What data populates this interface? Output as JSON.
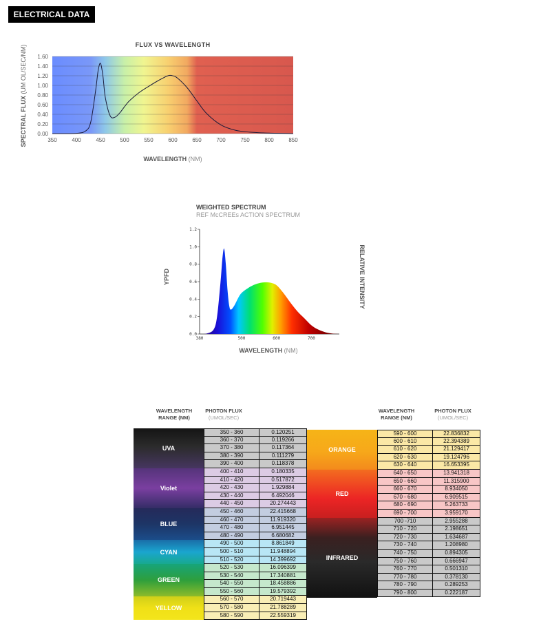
{
  "header": {
    "title": "ELECTRICAL DATA"
  },
  "chart1": {
    "title": "FLUX VS WAVELENGTH",
    "ylabel_bold": "SPECTRAL FLUX",
    "ylabel_light": "(UM OL/SEC/NM)",
    "xlabel_bold": "WAVELENGTH",
    "xlabel_light": "(NM)"
  },
  "chart2": {
    "title": "WEIGHTED SPECTRUM",
    "subtitle": "REF McCREEs ACTION SPECTRUM",
    "ylabel": "YPFD",
    "right_label": "RELATIVE INTENSITY",
    "xlabel_bold": "WAVELENGTH",
    "xlabel_light": "(NM)"
  },
  "table_headers": {
    "range": "WAVELENGTH",
    "range_unit": "RANGE (NM)",
    "flux": "PHOTON FLUX",
    "flux_unit": "(UMOL/SEC)"
  },
  "chart_data": [
    {
      "type": "line",
      "title": "FLUX VS WAVELENGTH",
      "xlabel": "WAVELENGTH (NM)",
      "ylabel": "SPECTRAL FLUX (UM OL/SEC/NM)",
      "xlim": [
        350,
        850
      ],
      "ylim": [
        0,
        1.6
      ],
      "xticks": [
        "350",
        "400",
        "450",
        "500",
        "550",
        "600",
        "650",
        "700",
        "750",
        "800",
        "850"
      ],
      "yticks": [
        "0.00",
        "0.20",
        "0.40",
        "0.60",
        "0.80",
        "1.00",
        "1.20",
        "1.40",
        "1.60"
      ],
      "grid": true,
      "x": [
        350,
        400,
        420,
        430,
        440,
        445,
        450,
        455,
        460,
        470,
        480,
        490,
        500,
        510,
        530,
        550,
        570,
        590,
        600,
        610,
        630,
        650,
        670,
        700,
        730,
        760,
        800,
        850
      ],
      "y": [
        0,
        0.005,
        0.06,
        0.25,
        0.9,
        1.3,
        1.46,
        1.2,
        0.75,
        0.37,
        0.34,
        0.43,
        0.56,
        0.68,
        0.85,
        0.98,
        1.1,
        1.2,
        1.2,
        1.15,
        0.95,
        0.68,
        0.42,
        0.18,
        0.07,
        0.03,
        0.01,
        0
      ]
    },
    {
      "type": "area",
      "title": "WEIGHTED SPECTRUM",
      "subtitle": "REF McCREEs ACTION SPECTRUM",
      "xlabel": "WAVELENGTH (NM)",
      "ylabel": "YPFD",
      "xlim": [
        380,
        780
      ],
      "ylim": [
        0,
        1.2
      ],
      "xticks": [
        "380",
        "500",
        "600",
        "700"
      ],
      "yticks": [
        "0.0",
        "0.2",
        "0.4",
        "0.6",
        "0.8",
        "1.0",
        "1.2"
      ],
      "x": [
        380,
        400,
        420,
        430,
        440,
        445,
        450,
        455,
        460,
        465,
        470,
        480,
        490,
        500,
        520,
        540,
        560,
        580,
        600,
        620,
        640,
        660,
        680,
        700,
        720,
        740,
        760,
        780
      ],
      "y": [
        0,
        0.005,
        0.05,
        0.2,
        0.6,
        0.85,
        0.98,
        0.8,
        0.5,
        0.32,
        0.28,
        0.33,
        0.41,
        0.47,
        0.53,
        0.57,
        0.59,
        0.59,
        0.56,
        0.47,
        0.36,
        0.26,
        0.18,
        0.1,
        0.05,
        0.02,
        0.005,
        0
      ]
    },
    {
      "type": "table",
      "columns": [
        "WAVELENGTH RANGE (NM)",
        "PHOTON FLUX (UMOL/SEC)"
      ],
      "left": {
        "rows": [
          [
            "350 - 360",
            "0.120251"
          ],
          [
            "360 - 370",
            "0.119266"
          ],
          [
            "370 - 380",
            "0.117364"
          ],
          [
            "380 - 390",
            "0.111279"
          ],
          [
            "390 - 400",
            "0.118378"
          ],
          [
            "400 - 410",
            "0.180335"
          ],
          [
            "410 - 420",
            "0.517872"
          ],
          [
            "420 - 430",
            "1.929884"
          ],
          [
            "430 - 440",
            "6.492046"
          ],
          [
            "440 - 450",
            "20.274443"
          ],
          [
            "450 - 460",
            "22.415668"
          ],
          [
            "460 - 470",
            "11.919320"
          ],
          [
            "470 - 480",
            "6.951445"
          ],
          [
            "480 - 490",
            "6.680682"
          ],
          [
            "490 - 500",
            "8.861849"
          ],
          [
            "500 - 510",
            "11.948894"
          ],
          [
            "510 - 520",
            "14.399692"
          ],
          [
            "520 - 530",
            "16.096399"
          ],
          [
            "530 - 540",
            "17.340881"
          ],
          [
            "540 - 550",
            "18.458886"
          ],
          [
            "550 - 560",
            "19.579392"
          ],
          [
            "560 - 570",
            "20.719443"
          ],
          [
            "570 - 580",
            "21.788289"
          ],
          [
            "580 - 590",
            "22.559319"
          ]
        ],
        "bands": [
          {
            "label": "UVA",
            "start": 0,
            "count": 5,
            "row_color": "#c9c9c9",
            "bg": "linear-gradient(#141414,#2b2b2b 45%,#463660)"
          },
          {
            "label": "Violet",
            "start": 5,
            "count": 5,
            "row_color": "#dccbe4",
            "bg": "linear-gradient(#55347a,#7a3fa0 50%,#342d66)"
          },
          {
            "label": "BLUE",
            "start": 10,
            "count": 4,
            "row_color": "#c3cde0",
            "bg": "linear-gradient(#252a5a,#1d3566 50%,#1b4d8a)"
          },
          {
            "label": "CYAN",
            "start": 14,
            "count": 3,
            "row_color": "#b8e6f5",
            "bg": "linear-gradient(#1a6ea8,#1aa5cf 50%,#18a98f)"
          },
          {
            "label": "GREEN",
            "start": 17,
            "count": 4,
            "row_color": "#c5e8cc",
            "bg": "linear-gradient(#16a47a,#2e9f3c 50%,#8dbb2a)"
          },
          {
            "label": "YELLOW",
            "start": 21,
            "count": 3,
            "row_color": "#f9eeb5",
            "bg": "linear-gradient(#cfd019,#f0e017 50%,#f3e51b)"
          }
        ]
      },
      "right": {
        "rows": [
          [
            "590 - 600",
            "22.836832"
          ],
          [
            "600 - 610",
            "22.394389"
          ],
          [
            "610 - 620",
            "21.129417"
          ],
          [
            "620 - 630",
            "19.124796"
          ],
          [
            "630 - 640",
            "16.653395"
          ],
          [
            "640 - 650",
            "13.941318"
          ],
          [
            "650 - 660",
            "11.315900"
          ],
          [
            "660 - 670",
            "8.934050"
          ],
          [
            "670 - 680",
            "6.909515"
          ],
          [
            "680 - 690",
            "5.263733"
          ],
          [
            "690 - 700",
            "3.959170"
          ],
          [
            "700 -710",
            "2.955288"
          ],
          [
            "710 - 720",
            "2.198651"
          ],
          [
            "720 - 730",
            "1.634687"
          ],
          [
            "730 - 740",
            "1.208980"
          ],
          [
            "740 - 750",
            "0.894305"
          ],
          [
            "750 - 760",
            "0.666947"
          ],
          [
            "760 - 770",
            "0.501310"
          ],
          [
            "770 - 780",
            "0.378130"
          ],
          [
            "780 - 790",
            "0.289253"
          ],
          [
            "790 - 800",
            "0.222187"
          ]
        ],
        "bands": [
          {
            "label": "ORANGE",
            "start": 0,
            "count": 5,
            "row_color": "#fbe8a6",
            "bg": "linear-gradient(#f6b417,#f7a81a 55%,#f38a1c)"
          },
          {
            "label": "RED",
            "start": 5,
            "count": 6,
            "row_color": "#f8c6c6",
            "bg": "linear-gradient(#f36c1f,#ec2525 60%,#c81f1f)"
          },
          {
            "label": "INFRARED",
            "start": 11,
            "count": 10,
            "row_color": "#c9c9c9",
            "bg": "linear-gradient(#9a2222,#3a2020 25%,#2a2a2a 55%,#111111)"
          }
        ]
      }
    }
  ]
}
